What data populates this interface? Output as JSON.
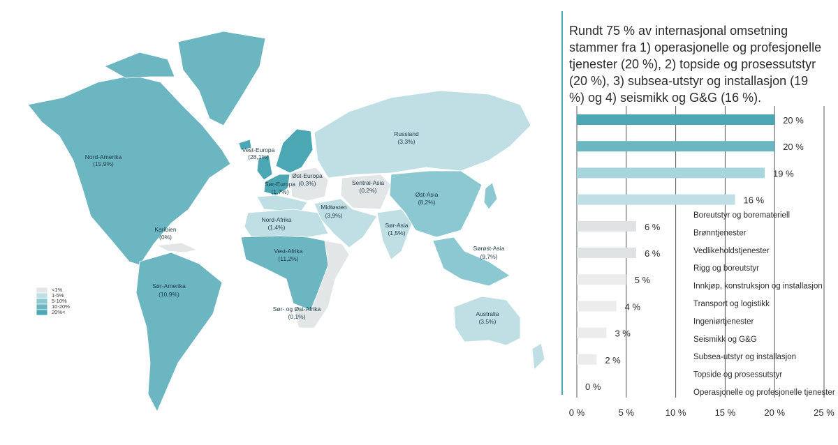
{
  "title": "Rundt 75 % av internasjonal omsetning stammer fra 1) operasjonelle og profesjonelle tjenester (20 %), 2) topside og prosessutstyr (20 %), 3) subsea-utstyr og installasjon (19 %) og 4) seismikk og G&G (16 %).",
  "colors": {
    "lt1": "#e3e6e6",
    "p1_5": "#bfdfe4",
    "p5_10": "#8cc8d1",
    "p10_20": "#6bb6c1",
    "p20plus": "#4aa7b3",
    "accent": "#4aa7b3"
  },
  "map": {
    "legend": [
      "<1%",
      "1-5%",
      "5-10%",
      "10-20%",
      "20%<"
    ],
    "regions": [
      {
        "name": "Nord-Amerika",
        "value": "(15,9%)",
        "class": "10-20%"
      },
      {
        "name": "Vest-Europa",
        "value": "(28,1%)",
        "class": "20%<"
      },
      {
        "name": "Russland",
        "value": "(3,3%)",
        "class": "1-5%"
      },
      {
        "name": "Øst-Europa",
        "value": "(0,3%)",
        "class": "<1%"
      },
      {
        "name": "Sør-Europa",
        "value": "(1,7%)",
        "class": "1-5%"
      },
      {
        "name": "Sentral-Asia",
        "value": "(0,2%)",
        "class": "<1%"
      },
      {
        "name": "Øst-Asia",
        "value": "(8,2%)",
        "class": "5-10%"
      },
      {
        "name": "Midtøsten",
        "value": "(3,9%)",
        "class": "1-5%"
      },
      {
        "name": "Nord-Afrika",
        "value": "(1,4%)",
        "class": "1-5%"
      },
      {
        "name": "Karibien",
        "value": "(0%)",
        "class": "<1%"
      },
      {
        "name": "Vest-Afrika",
        "value": "(11,2%)",
        "class": "10-20%"
      },
      {
        "name": "Sør-Asia",
        "value": "(1,5%)",
        "class": "1-5%"
      },
      {
        "name": "Sørøst-Asia",
        "value": "(9,7%)",
        "class": "5-10%"
      },
      {
        "name": "Sør-Amerika",
        "value": "(10,9%)",
        "class": "10-20%"
      },
      {
        "name": "Sør- og Øst-Afrika",
        "value": "(0,1%)",
        "class": "<1%"
      },
      {
        "name": "Australia",
        "value": "(3,5%)",
        "class": "1-5%"
      }
    ]
  },
  "chart_data": {
    "type": "bar",
    "orientation": "horizontal",
    "xlim": [
      0,
      25
    ],
    "xticks": [
      "0 %",
      "5 %",
      "10 %",
      "15 %",
      "20 %",
      "25 %"
    ],
    "categories": [
      "Operasjonelle og profesjonelle tjenester",
      "Topside og prosessutstyr",
      "Subsea-utstyr og installasjon",
      "Seismikk og G&G",
      "Ingeniørtjenester",
      "Transport og logistikk",
      "Innkjøp, konstruksjon og installasjon",
      "Rigg og boreutstyr",
      "Vedlikeholdstjenester",
      "Brønntjenester",
      "Boreutstyr og boremateriell"
    ],
    "values": [
      20,
      20,
      19,
      16,
      6,
      6,
      5,
      4,
      3,
      2,
      0
    ],
    "value_labels": [
      "20 %",
      "20 %",
      "19 %",
      "16 %",
      "6 %",
      "6 %",
      "5 %",
      "4 %",
      "3 %",
      "2 %",
      "0 %"
    ],
    "bar_colors": [
      "#4aa7b3",
      "#6bb6c1",
      "#a8d6dd",
      "#bfdfe4",
      "#dfe3e3",
      "#dfe3e3",
      "#ececec",
      "#ececec",
      "#ececec",
      "#ececec",
      "#ececec"
    ],
    "grid": true
  }
}
